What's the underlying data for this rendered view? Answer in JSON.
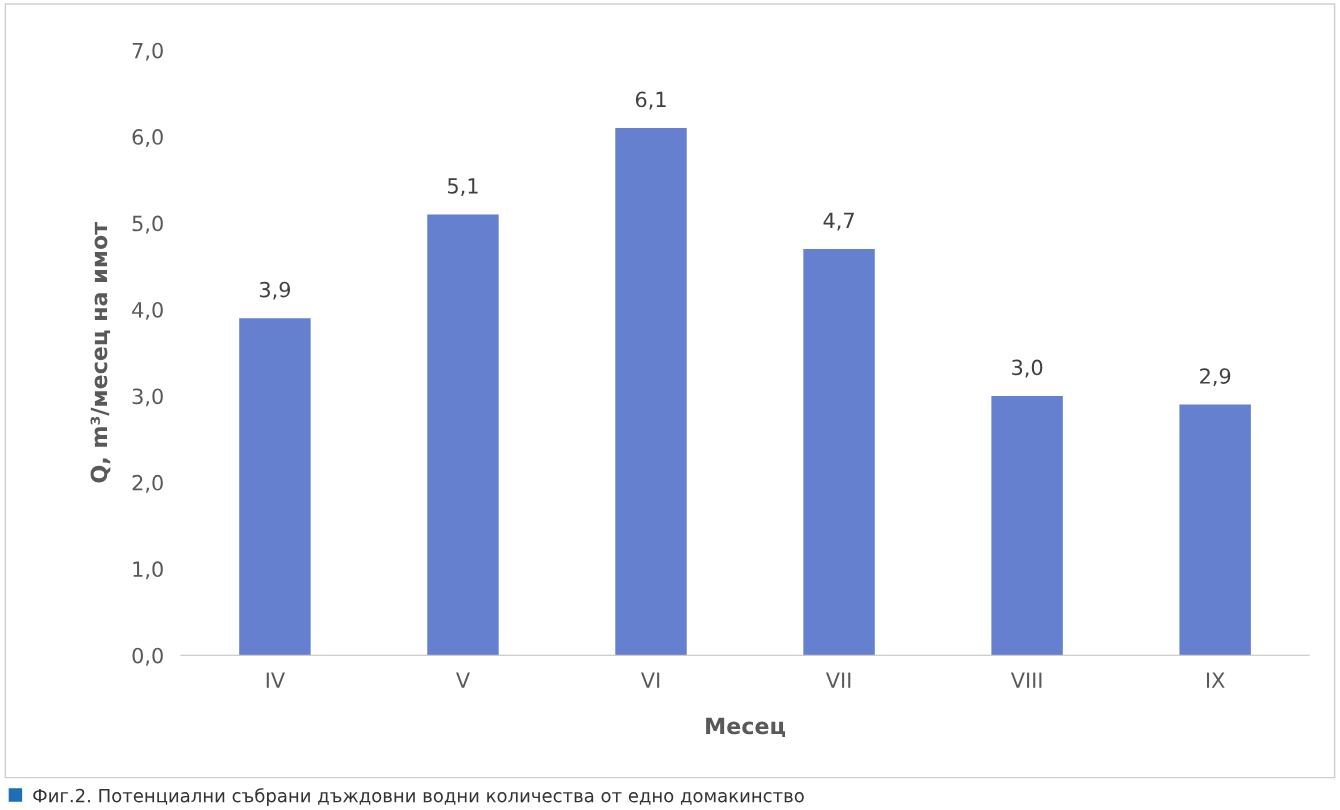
{
  "chart_data": {
    "type": "bar",
    "xlabel": "Месец",
    "ylabel": "Q, m³/месец на имот",
    "categories": [
      "IV",
      "V",
      "VI",
      "VII",
      "VIII",
      "IX"
    ],
    "values": [
      3.9,
      5.1,
      6.1,
      4.7,
      3.0,
      2.9
    ],
    "value_labels": [
      "3,9",
      "5,1",
      "6,1",
      "4,7",
      "3,0",
      "2,9"
    ],
    "color": "#6580cf",
    "ylim": [
      0,
      7
    ],
    "yticks": [
      {
        "value": 0,
        "label": "0,0"
      },
      {
        "value": 1,
        "label": "1,0"
      },
      {
        "value": 2,
        "label": "2,0"
      },
      {
        "value": 3,
        "label": "3,0"
      },
      {
        "value": 4,
        "label": "4,0"
      },
      {
        "value": 5,
        "label": "5,0"
      },
      {
        "value": 6,
        "label": "6,0"
      },
      {
        "value": 7,
        "label": "7,0"
      }
    ],
    "grid": false,
    "annotations": [
      "Фиг.2. Потенциални събрани дъждовни водни количества от едно домакинство"
    ]
  }
}
